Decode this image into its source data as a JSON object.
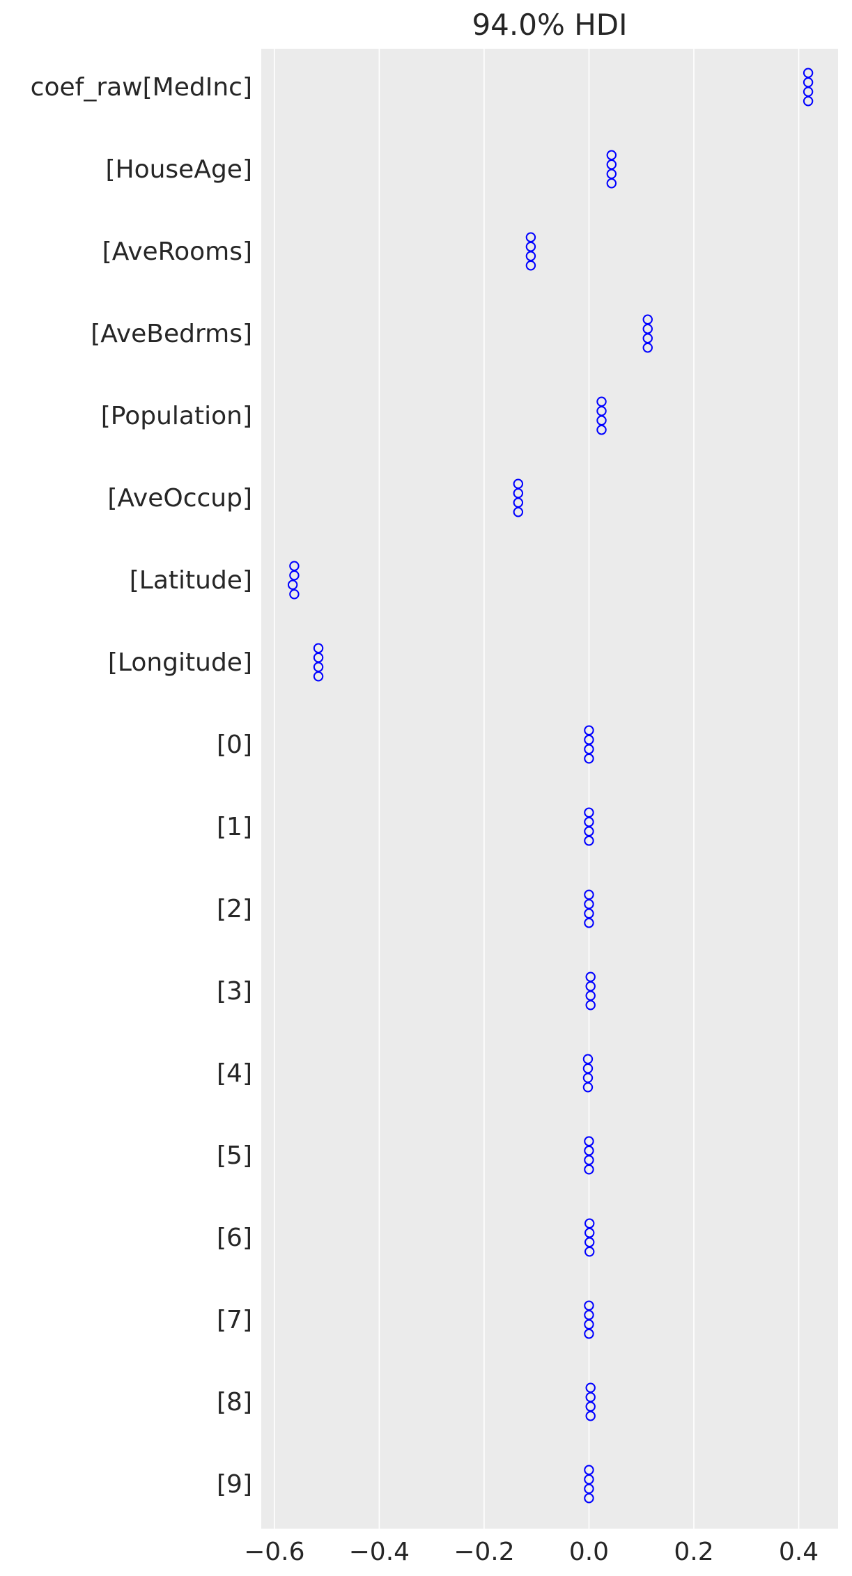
{
  "chart_data": {
    "type": "scatter",
    "title": "94.0% HDI",
    "xlabel": "",
    "ylabel": "",
    "xlim": [
      -0.625,
      0.475
    ],
    "x_ticks": [
      -0.6,
      -0.4,
      -0.2,
      0.0,
      0.2,
      0.4
    ],
    "x_tick_labels": [
      "−0.6",
      "−0.4",
      "−0.2",
      "0.0",
      "0.2",
      "0.4"
    ],
    "grid": "vertical",
    "marker": "open-circle",
    "marker_color": "#0000ff",
    "background_color": "#ebebeb",
    "points_per_row": 4,
    "categories": [
      "coef_raw[MedInc]",
      "[HouseAge]",
      "[AveRooms]",
      "[AveBedrms]",
      "[Population]",
      "[AveOccup]",
      "[Latitude]",
      "[Longitude]",
      "[0]",
      "[1]",
      "[2]",
      "[3]",
      "[4]",
      "[5]",
      "[6]",
      "[7]",
      "[8]",
      "[9]"
    ],
    "values": [
      [
        0.418,
        0.418,
        0.418,
        0.418
      ],
      [
        0.043,
        0.043,
        0.043,
        0.043
      ],
      [
        -0.111,
        -0.111,
        -0.111,
        -0.111
      ],
      [
        0.112,
        0.112,
        0.112,
        0.112
      ],
      [
        0.024,
        0.024,
        0.024,
        0.024
      ],
      [
        -0.135,
        -0.135,
        -0.135,
        -0.135
      ],
      [
        -0.562,
        -0.562,
        -0.565,
        -0.562
      ],
      [
        -0.516,
        -0.516,
        -0.516,
        -0.516
      ],
      [
        0.0,
        0.0,
        0.0,
        0.0
      ],
      [
        0.0,
        0.0,
        0.0,
        0.0
      ],
      [
        0.0,
        0.0,
        0.0,
        0.0
      ],
      [
        0.003,
        0.003,
        0.003,
        0.003
      ],
      [
        -0.002,
        -0.002,
        -0.002,
        -0.002
      ],
      [
        0.0,
        0.0,
        0.0,
        0.0
      ],
      [
        0.001,
        0.001,
        0.001,
        0.001
      ],
      [
        0.0,
        0.0,
        0.0,
        0.0
      ],
      [
        0.003,
        0.003,
        0.003,
        0.003
      ],
      [
        0.0,
        0.0,
        0.0,
        0.0
      ]
    ]
  }
}
